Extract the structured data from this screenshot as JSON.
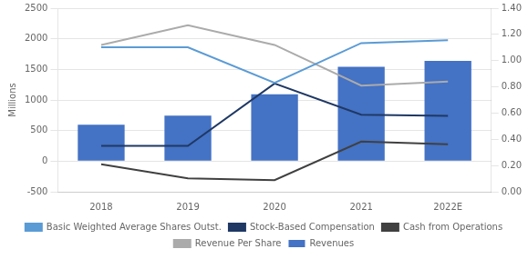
{
  "chart_data": {
    "type": "bar",
    "categories": [
      "2018",
      "2019",
      "2020",
      "2021",
      "2022E"
    ],
    "series": [
      {
        "name": "Revenues",
        "type": "bar",
        "color": "#4472C4",
        "values": [
          595,
          743,
          1093,
          1542,
          1637
        ]
      },
      {
        "name": "Basic Weighted Average Shares\nOutst.",
        "type": "line",
        "color": "#5B9BD5",
        "line_style": "solid",
        "values": [
          1860,
          1860,
          1280,
          1930,
          1975
        ]
      },
      {
        "name": "Stock-Based Compensation",
        "type": "line",
        "color": "#1F3864",
        "line_style": "solid",
        "values": [
          250,
          250,
          1270,
          760,
          740
        ]
      },
      {
        "name": "Cash from Operations",
        "type": "line",
        "color": "#404040",
        "line_style": "solid",
        "values": [
          -50,
          -280,
          -310,
          320,
          275
        ]
      },
      {
        "name": "Revenue Per Share",
        "type": "line",
        "color": "#ABABAB",
        "line_style": "solid",
        "axis": "y2",
        "values": [
          1.12,
          1.27,
          1.12,
          0.81,
          0.84
        ]
      }
    ],
    "y_label": "Millions",
    "ylim": [
      -500,
      2500
    ],
    "yticks": [
      -500,
      0,
      500,
      1000,
      1500,
      2000,
      2500
    ],
    "y2lim": [
      0.0,
      1.4
    ],
    "y2ticks": [
      {
        "value": 0.0,
        "label": "0.00"
      },
      {
        "value": 0.2,
        "label": "0.20"
      },
      {
        "value": 0.4,
        "label": "0.40"
      },
      {
        "value": 0.6,
        "label": "0.60"
      },
      {
        "value": 0.8,
        "label": "0.80"
      },
      {
        "value": 1.0,
        "label": "1.00"
      },
      {
        "value": 1.2,
        "label": "1.20"
      },
      {
        "value": 1.4,
        "label": "1.40"
      }
    ],
    "grid": true,
    "legend": "bottom"
  }
}
